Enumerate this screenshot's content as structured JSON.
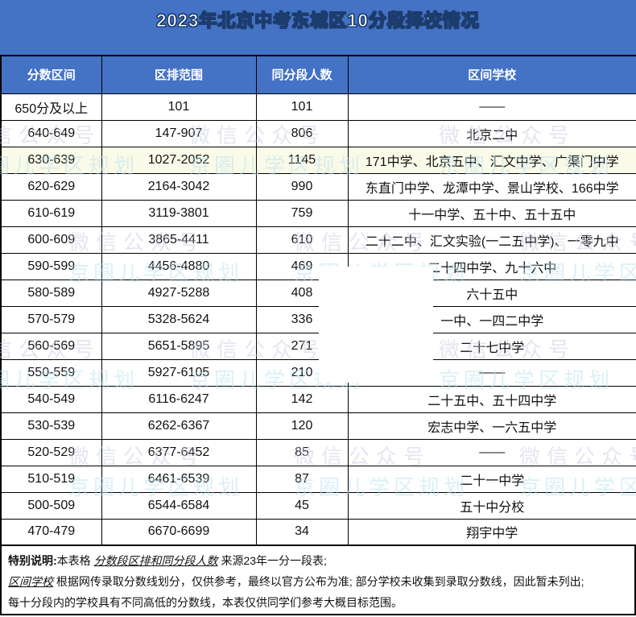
{
  "title": "2023年北京中考东城区10分段择校情况",
  "chart_data": {
    "type": "table",
    "title": "2023年北京中考东城区10分段择校情况",
    "columns": [
      "分数区间",
      "区排范围",
      "同分段人数",
      "区间学校"
    ],
    "highlight_row_index": 2,
    "rows": [
      [
        "650分及以上",
        "101",
        "101",
        "——"
      ],
      [
        "640-649",
        "147-907",
        "806",
        "北京二中"
      ],
      [
        "630-639",
        "1027-2052",
        "1145",
        "171中学、北京五中、汇文中学、广渠门中学"
      ],
      [
        "620-629",
        "2164-3042",
        "990",
        "东直门中学、龙潭中学、景山学校、166中学"
      ],
      [
        "610-619",
        "3119-3801",
        "759",
        "十一中学、五十中、五十五中"
      ],
      [
        "600-609",
        "3865-4411",
        "610",
        "二十二中、汇文实验(一二五中学)、一零九中"
      ],
      [
        "590-599",
        "4456-4880",
        "469",
        "二十四中学、九十六中"
      ],
      [
        "580-589",
        "4927-5288",
        "408",
        "六十五中"
      ],
      [
        "570-579",
        "5328-5624",
        "336",
        "一中、一四二中学"
      ],
      [
        "560-569",
        "5651-5895",
        "271",
        "二十七中学"
      ],
      [
        "550-559",
        "5927-6105",
        "210",
        "——"
      ],
      [
        "540-549",
        "6116-6247",
        "142",
        "二十五中、五十四中学"
      ],
      [
        "530-539",
        "6262-6367",
        "120",
        "宏志中学、一六五中学"
      ],
      [
        "520-529",
        "6377-6452",
        "85",
        "——"
      ],
      [
        "510-519",
        "6461-6539",
        "87",
        "二十一中学"
      ],
      [
        "500-509",
        "6544-6584",
        "45",
        "五十中分校"
      ],
      [
        "470-479",
        "6670-6699",
        "34",
        "翔宇中学"
      ]
    ]
  },
  "notes": {
    "label": "特别说明:",
    "line1_pre": "本表格 ",
    "line1_em": "分数段区排和同分段人数",
    "line1_post": " 来源23年一分一段表;",
    "line2_em": "区间学校",
    "line2_post": " 根据网传录取分数线划分，仅供参考，最终以官方公布为准; 部分学校未收集到录取分数线，因此暂未列出;",
    "line3": "每十分段内的学校具有不同高低的分数线，本表仅供同学们参考大概目标范围。"
  },
  "watermark": {
    "line1": "微信公众号",
    "line2": "京圈儿学区规划"
  },
  "colors": {
    "accent_blue": "#4472c4",
    "title_outline": "#1c3c6e",
    "highlight_row": "#fafae8",
    "border": "#000000",
    "watermark_gray": "#c9cfe3",
    "watermark_cyan": "#b9e2ef"
  }
}
